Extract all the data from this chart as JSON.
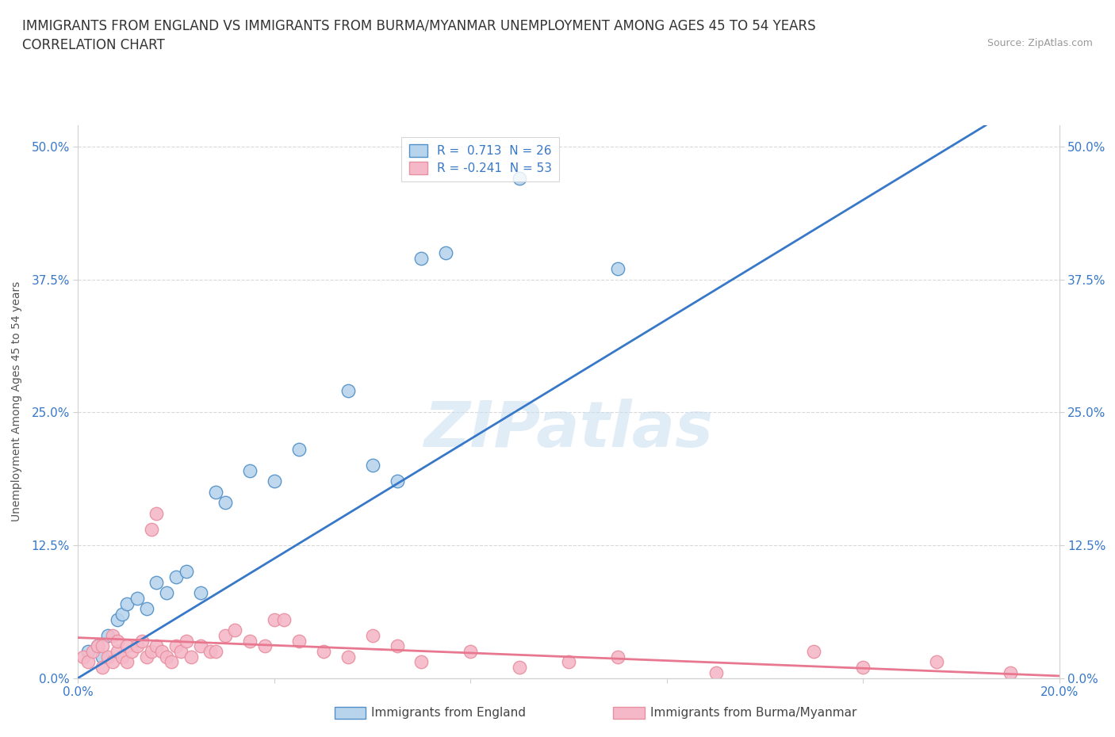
{
  "title_line1": "IMMIGRANTS FROM ENGLAND VS IMMIGRANTS FROM BURMA/MYANMAR UNEMPLOYMENT AMONG AGES 45 TO 54 YEARS",
  "title_line2": "CORRELATION CHART",
  "source_text": "Source: ZipAtlas.com",
  "ylabel": "Unemployment Among Ages 45 to 54 years",
  "ytick_labels": [
    "0.0%",
    "12.5%",
    "25.0%",
    "37.5%",
    "50.0%"
  ],
  "ytick_values": [
    0.0,
    0.125,
    0.25,
    0.375,
    0.5
  ],
  "xtick_labels": [
    "0.0%",
    "",
    "",
    "",
    "",
    "20.0%"
  ],
  "xtick_values": [
    0.0,
    0.04,
    0.08,
    0.12,
    0.16,
    0.2
  ],
  "xlim": [
    0.0,
    0.2
  ],
  "ylim": [
    0.0,
    0.52
  ],
  "watermark": "ZIPatlas",
  "legend_england_label": "Immigrants from England",
  "legend_burma_label": "Immigrants from Burma/Myanmar",
  "england_R": 0.713,
  "england_N": 26,
  "burma_R": -0.241,
  "burma_N": 53,
  "england_color": "#b8d4ec",
  "burma_color": "#f5b8c8",
  "england_edge_color": "#5090c8",
  "burma_edge_color": "#e890a0",
  "england_line_color": "#3878c8",
  "burma_line_color": "#e87890",
  "england_scatter_x": [
    0.002,
    0.004,
    0.005,
    0.006,
    0.008,
    0.009,
    0.01,
    0.012,
    0.014,
    0.016,
    0.018,
    0.02,
    0.022,
    0.025,
    0.028,
    0.03,
    0.035,
    0.04,
    0.045,
    0.055,
    0.06,
    0.065,
    0.07,
    0.075,
    0.09,
    0.11
  ],
  "england_scatter_y": [
    0.025,
    0.03,
    0.02,
    0.04,
    0.055,
    0.06,
    0.07,
    0.075,
    0.065,
    0.09,
    0.08,
    0.095,
    0.1,
    0.08,
    0.175,
    0.165,
    0.195,
    0.185,
    0.215,
    0.27,
    0.2,
    0.185,
    0.395,
    0.4,
    0.47,
    0.385
  ],
  "burma_scatter_x": [
    0.001,
    0.002,
    0.003,
    0.004,
    0.005,
    0.005,
    0.006,
    0.007,
    0.007,
    0.008,
    0.008,
    0.009,
    0.01,
    0.01,
    0.011,
    0.012,
    0.013,
    0.014,
    0.015,
    0.015,
    0.016,
    0.016,
    0.017,
    0.018,
    0.019,
    0.02,
    0.021,
    0.022,
    0.023,
    0.025,
    0.027,
    0.028,
    0.03,
    0.032,
    0.035,
    0.038,
    0.04,
    0.042,
    0.045,
    0.05,
    0.055,
    0.06,
    0.065,
    0.07,
    0.08,
    0.09,
    0.1,
    0.11,
    0.13,
    0.15,
    0.16,
    0.175,
    0.19
  ],
  "burma_scatter_y": [
    0.02,
    0.015,
    0.025,
    0.03,
    0.01,
    0.03,
    0.02,
    0.015,
    0.04,
    0.025,
    0.035,
    0.02,
    0.015,
    0.03,
    0.025,
    0.03,
    0.035,
    0.02,
    0.14,
    0.025,
    0.155,
    0.03,
    0.025,
    0.02,
    0.015,
    0.03,
    0.025,
    0.035,
    0.02,
    0.03,
    0.025,
    0.025,
    0.04,
    0.045,
    0.035,
    0.03,
    0.055,
    0.055,
    0.035,
    0.025,
    0.02,
    0.04,
    0.03,
    0.015,
    0.025,
    0.01,
    0.015,
    0.02,
    0.005,
    0.025,
    0.01,
    0.015,
    0.005
  ],
  "england_line_x": [
    0.0,
    0.185
  ],
  "england_line_y": [
    0.0,
    0.52
  ],
  "burma_line_x": [
    0.0,
    0.2
  ],
  "burma_line_y": [
    0.038,
    0.002
  ],
  "grid_color": "#d0d0d0",
  "background_color": "#ffffff",
  "title_fontsize": 12,
  "axis_label_fontsize": 10,
  "tick_fontsize": 11,
  "legend_fontsize": 11
}
